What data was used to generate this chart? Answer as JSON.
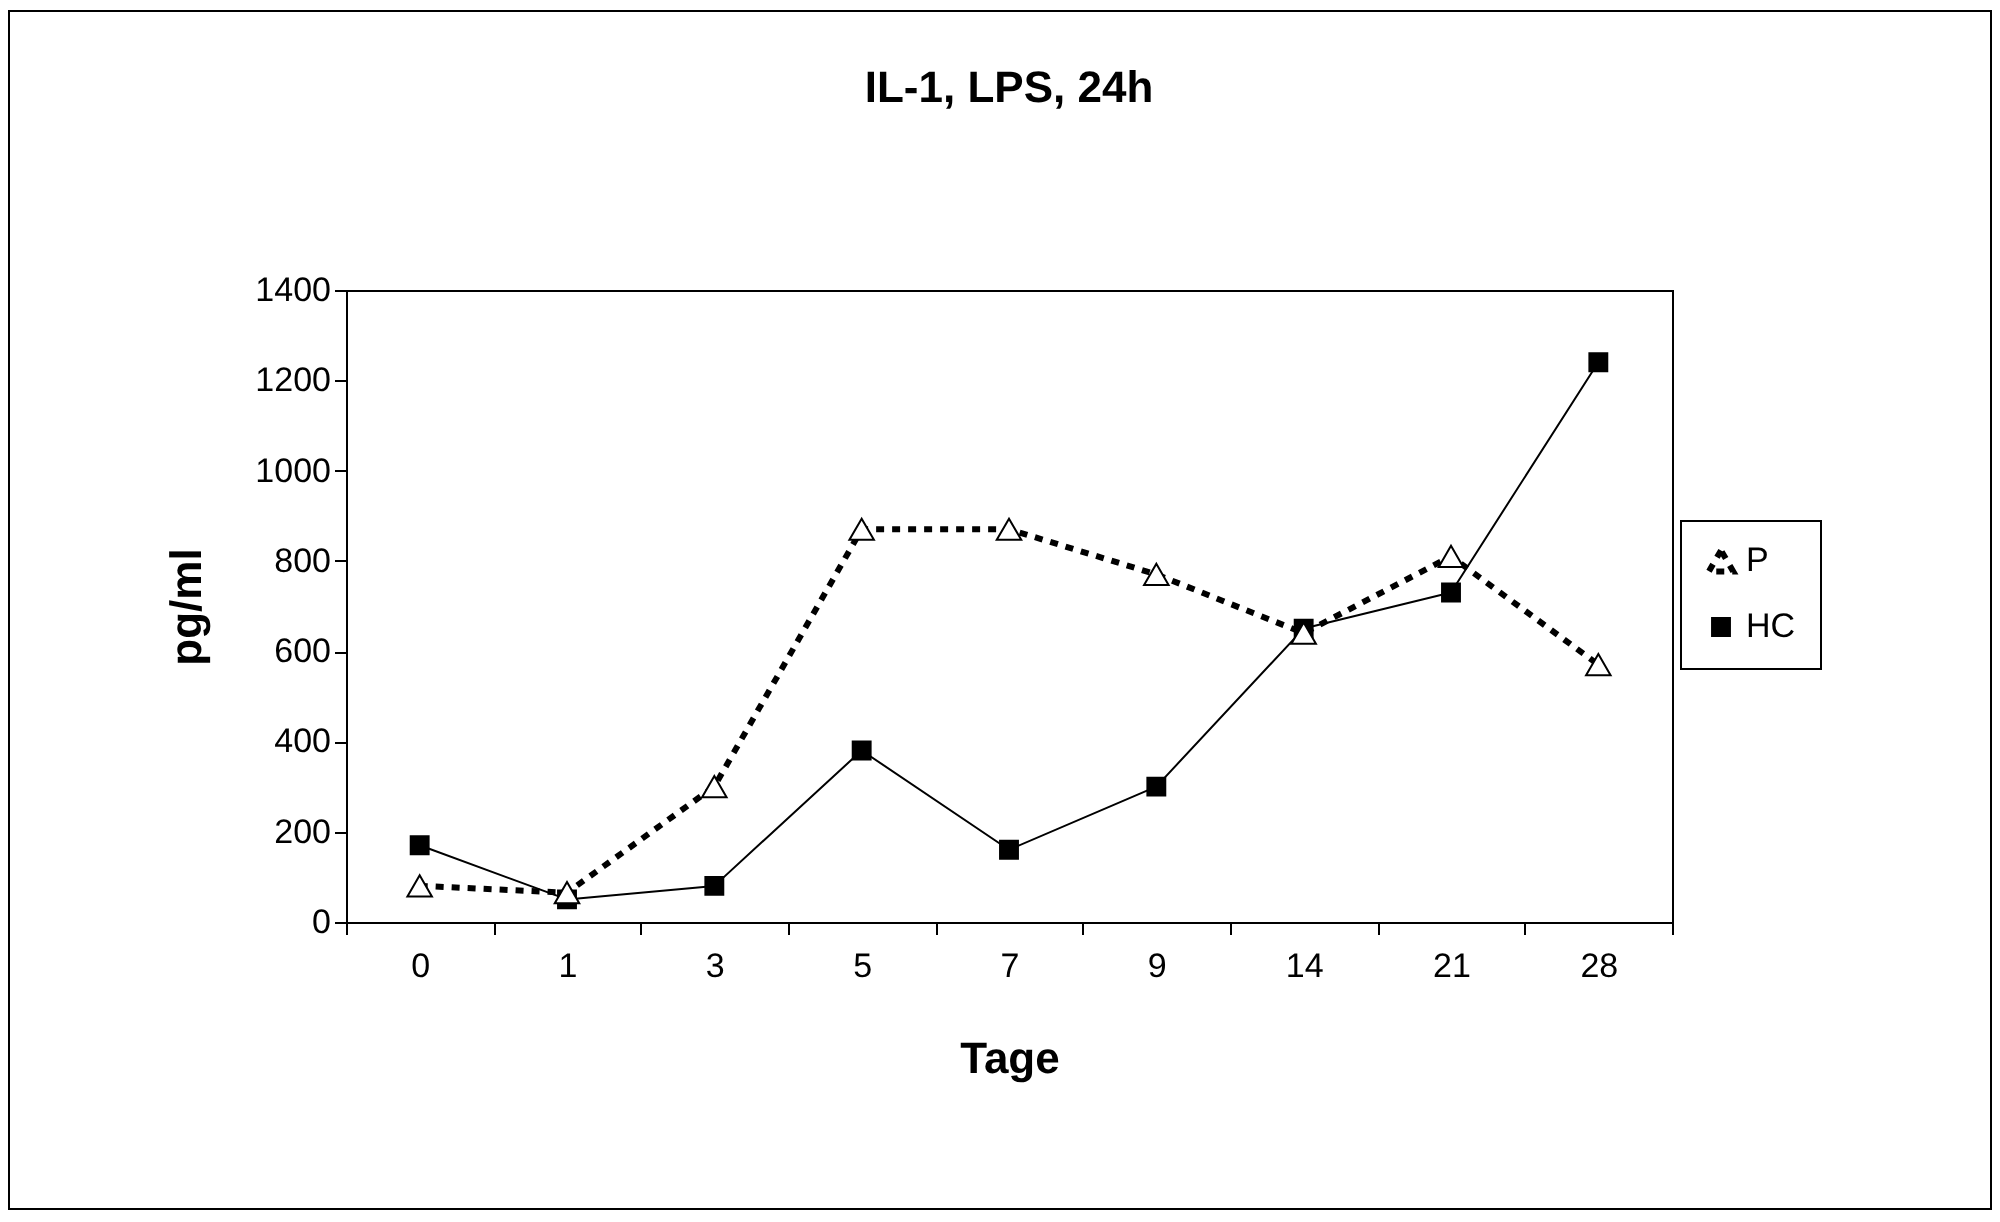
{
  "chart_data": {
    "type": "line",
    "title": "IL-1, LPS, 24h",
    "xlabel": "Tage",
    "ylabel": "pg/ml",
    "categories": [
      "0",
      "1",
      "3",
      "5",
      "7",
      "9",
      "14",
      "21",
      "28"
    ],
    "ylim": [
      0,
      1400
    ],
    "yticks": [
      0,
      200,
      400,
      600,
      800,
      1000,
      1200,
      1400
    ],
    "grid": false,
    "legend": "right",
    "series": [
      {
        "name": "P",
        "color": "#000000",
        "marker": "triangle",
        "line_style": "dotted",
        "values": [
          80,
          65,
          300,
          870,
          870,
          770,
          640,
          810,
          570
        ]
      },
      {
        "name": "HC",
        "color": "#000000",
        "marker": "square",
        "line_style": "solid",
        "values": [
          170,
          50,
          80,
          380,
          160,
          300,
          650,
          730,
          1240
        ]
      }
    ]
  }
}
